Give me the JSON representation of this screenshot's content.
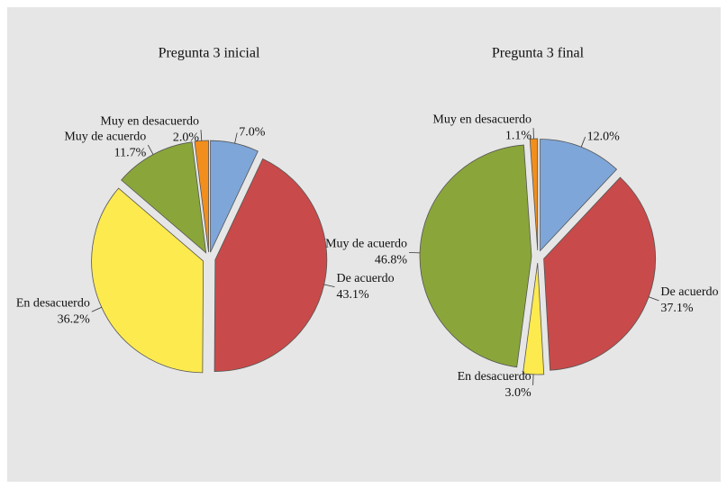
{
  "chart_data": [
    {
      "type": "pie",
      "title": "Pregunta 3 inicial",
      "categories": [
        null,
        "De acuerdo",
        "En desacuerdo",
        "Muy de acuerdo",
        "Muy en desacuerdo"
      ],
      "values": [
        7.0,
        43.1,
        36.2,
        11.7,
        2.0
      ],
      "value_labels": [
        "7.0%",
        "43.1%",
        "36.2%",
        "11.7%",
        "2.0%"
      ],
      "colors": [
        "#7ea6d9",
        "#c94a4a",
        "#fdea4f",
        "#8aa63a",
        "#f28e1c"
      ]
    },
    {
      "type": "pie",
      "title": "Pregunta 3 final",
      "categories": [
        null,
        "De acuerdo",
        "En desacuerdo",
        "Muy de acuerdo",
        "Muy en desacuerdo"
      ],
      "values": [
        12.0,
        37.1,
        3.0,
        46.8,
        1.1
      ],
      "value_labels": [
        "12.0%",
        "37.1%",
        "3.0%",
        "46.8%",
        "1.1%"
      ],
      "colors": [
        "#7ea6d9",
        "#c94a4a",
        "#fdea4f",
        "#8aa63a",
        "#f28e1c"
      ]
    }
  ]
}
